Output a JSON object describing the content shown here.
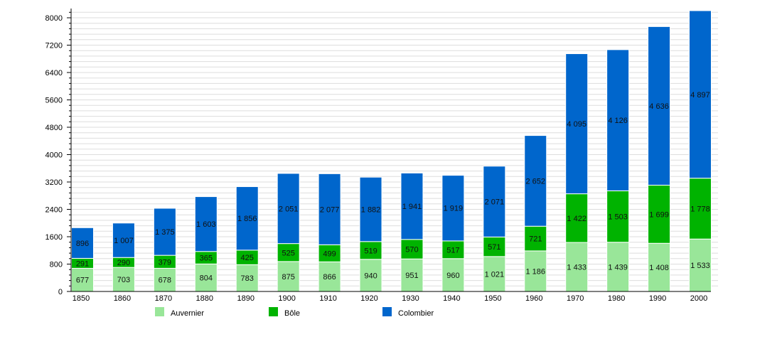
{
  "chart_data": {
    "type": "bar",
    "stacked": true,
    "categories": [
      "1850",
      "1860",
      "1870",
      "1880",
      "1890",
      "1900",
      "1910",
      "1920",
      "1930",
      "1940",
      "1950",
      "1960",
      "1970",
      "1980",
      "1990",
      "2000"
    ],
    "series": [
      {
        "name": "Auvernier",
        "color": "#99e699",
        "values": [
          677,
          703,
          678,
          804,
          783,
          875,
          866,
          940,
          951,
          960,
          1021,
          1186,
          1433,
          1439,
          1408,
          1533
        ],
        "labels": [
          "677",
          "703",
          "678",
          "804",
          "783",
          "875",
          "866",
          "940",
          "951",
          "960",
          "1 021",
          "1 186",
          "1 433",
          "1 439",
          "1 408",
          "1 533"
        ]
      },
      {
        "name": "Bôle",
        "color": "#00b300",
        "values": [
          291,
          290,
          379,
          365,
          425,
          525,
          499,
          519,
          570,
          517,
          571,
          721,
          1422,
          1503,
          1699,
          1778
        ],
        "labels": [
          "291",
          "290",
          "379",
          "365",
          "425",
          "525",
          "499",
          "519",
          "570",
          "517",
          "571",
          "721",
          "1 422",
          "1 503",
          "1 699",
          "1 778"
        ]
      },
      {
        "name": "Colombier",
        "color": "#0066cc",
        "values": [
          896,
          1007,
          1375,
          1603,
          1856,
          2051,
          2077,
          1882,
          1941,
          1919,
          2071,
          2652,
          4095,
          4126,
          4636,
          4897
        ],
        "labels": [
          "896",
          "1 007",
          "1 375",
          "1 603",
          "1 856",
          "2 051",
          "2 077",
          "1 882",
          "1 941",
          "1 919",
          "2 071",
          "2 652",
          "4 095",
          "4 126",
          "4 636",
          "4 897"
        ]
      }
    ],
    "ylim": [
      0,
      8000
    ],
    "yticks": [
      "0",
      "800",
      "1600",
      "2400",
      "3200",
      "4000",
      "4800",
      "5600",
      "6400",
      "7200",
      "8000"
    ],
    "grid": true,
    "legend": "bottom"
  }
}
